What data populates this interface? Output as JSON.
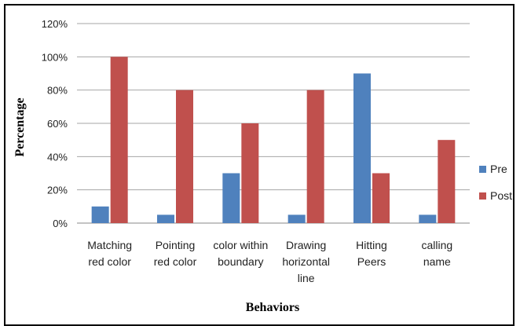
{
  "chart_data": {
    "type": "bar",
    "categories": [
      [
        "Matching",
        "red color"
      ],
      [
        "Pointing",
        "red color"
      ],
      [
        "color within",
        "boundary"
      ],
      [
        "Drawing",
        "horizontal",
        "line"
      ],
      [
        "Hitting",
        "Peers"
      ],
      [
        "calling",
        "name"
      ]
    ],
    "series": [
      {
        "name": "Pre",
        "color": "#4f81bd",
        "values": [
          10,
          5,
          30,
          5,
          90,
          5
        ]
      },
      {
        "name": "Post",
        "color": "#c0504d",
        "values": [
          100,
          80,
          60,
          80,
          30,
          50
        ]
      }
    ],
    "ylim": [
      0,
      120
    ],
    "yticks": [
      "0%",
      "20%",
      "40%",
      "60%",
      "80%",
      "100%",
      "120%"
    ],
    "xlabel": "Behaviors",
    "ylabel": "Percentage",
    "grid": true,
    "legend": "right"
  }
}
